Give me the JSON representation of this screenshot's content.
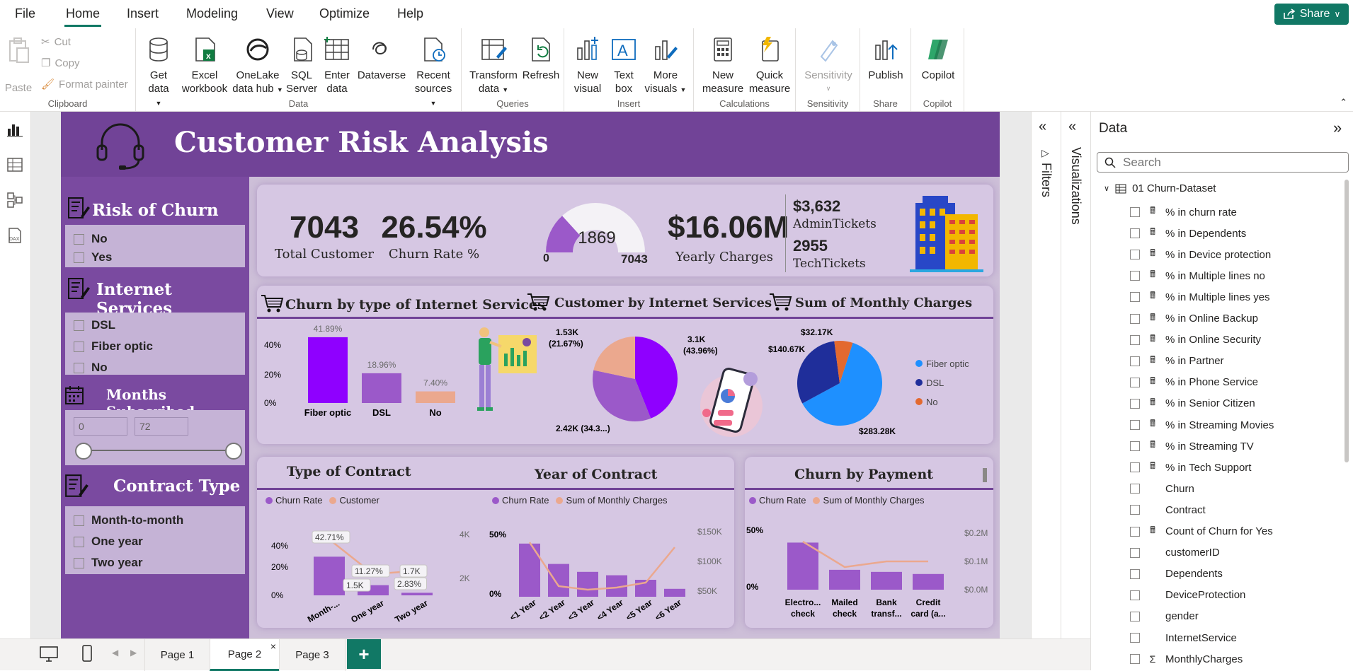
{
  "menu": {
    "items": [
      "File",
      "Home",
      "Insert",
      "Modeling",
      "View",
      "Optimize",
      "Help"
    ],
    "active": "Home",
    "share_label": "Share"
  },
  "ribbon": {
    "clipboard": {
      "paste": "Paste",
      "cut": "Cut",
      "copy": "Copy",
      "format_painter": "Format painter",
      "label": "Clipboard"
    },
    "data": {
      "get_data_1": "Get",
      "get_data_2": "data",
      "excel_1": "Excel",
      "excel_2": "workbook",
      "onelake_1": "OneLake",
      "onelake_2": "data hub",
      "sql_1": "SQL",
      "sql_2": "Server",
      "enter_1": "Enter",
      "enter_2": "data",
      "dataverse": "Dataverse",
      "recent_1": "Recent",
      "recent_2": "sources",
      "label": "Data"
    },
    "queries": {
      "transform_1": "Transform",
      "transform_2": "data",
      "refresh": "Refresh",
      "label": "Queries"
    },
    "insert": {
      "new_visual_1": "New",
      "new_visual_2": "visual",
      "text_box_1": "Text",
      "text_box_2": "box",
      "more_visuals_1": "More",
      "more_visuals_2": "visuals",
      "label": "Insert"
    },
    "calculations": {
      "new_measure_1": "New",
      "new_measure_2": "measure",
      "quick_measure_1": "Quick",
      "quick_measure_2": "measure",
      "label": "Calculations"
    },
    "sensitivity": {
      "btn": "Sensitivity",
      "label": "Sensitivity"
    },
    "share": {
      "publish": "Publish",
      "label": "Share"
    },
    "copilot": {
      "btn": "Copilot",
      "label": "Copilot"
    }
  },
  "report": {
    "title": "Customer Risk  Analysis",
    "slicers": {
      "risk": {
        "title": "Risk of Churn",
        "options": [
          "No",
          "Yes"
        ]
      },
      "internet": {
        "title": "Internet Services",
        "options": [
          "DSL",
          "Fiber optic",
          "No"
        ]
      },
      "months": {
        "title": "Months Subscribed",
        "min": "0",
        "max": "72"
      },
      "contract": {
        "title": "Contract Type",
        "options": [
          "Month-to-month",
          "One year",
          "Two year"
        ]
      }
    },
    "kpis": {
      "total_customer": {
        "value": "7043",
        "label": "Total Customer"
      },
      "churn_rate": {
        "value": "26.54%",
        "label": "Churn Rate %"
      },
      "gauge": {
        "value": "1869",
        "min": "0",
        "max": "7043",
        "fraction": 0.2654
      },
      "yearly_charges": {
        "value": "$16.06M",
        "label": "Yearly Charges"
      },
      "admin_tickets": {
        "value": "$3,632",
        "label": "AdminTickets"
      },
      "tech_tickets": {
        "value": "2955",
        "label": "TechTickets"
      }
    },
    "section_titles": {
      "churn_internet": "Churn by type of Internet Services",
      "customer_internet": "Customer by Internet Services",
      "monthly_charges": "Sum of Monthly Charges",
      "type_contract": "Type of Contract",
      "year_contract": "Year of Contract",
      "payment": "Churn by Payment Method"
    },
    "legends": {
      "churn_rate": "Churn Rate",
      "customer": "Customer",
      "sum_monthly": "Sum of Monthly Charges"
    },
    "colors": {
      "purple": "#9b59c9",
      "bright_purple": "#8f00ff",
      "salmon": "#eba88e",
      "blue": "#1e90ff",
      "navy": "#1f2e9a",
      "orange": "#e3692f"
    }
  },
  "chart_data": [
    {
      "type": "bar",
      "title": "Churn by type of Internet Services",
      "categories": [
        "Fiber optic",
        "DSL",
        "No"
      ],
      "values": [
        41.89,
        18.96,
        7.4
      ],
      "data_labels": [
        "41.89%",
        "18.96%",
        "7.40%"
      ],
      "yticks": [
        "40%",
        "20%",
        "0%"
      ],
      "ylim": [
        0,
        45
      ]
    },
    {
      "type": "pie",
      "title": "Customer by Internet Services",
      "labels": [
        "Fiber optic",
        "DSL",
        "No"
      ],
      "values": [
        3096,
        2421,
        1526
      ],
      "data_labels": [
        "3.1K\n(43.96%)",
        "2.42K (34.3...)",
        "1.53K\n(21.67%)"
      ]
    },
    {
      "type": "pie",
      "title": "Sum of Monthly Charges",
      "labels": [
        "Fiber optic",
        "DSL",
        "No"
      ],
      "values": [
        283.28,
        140.67,
        32.17
      ],
      "data_labels": [
        "$283.28K",
        "$140.67K",
        "$32.17K"
      ],
      "legend": [
        "Fiber optic",
        "DSL",
        "No"
      ]
    },
    {
      "type": "bar",
      "title": "Type of Contract",
      "categories": [
        "Month-...",
        "One year",
        "Two year"
      ],
      "series": [
        {
          "name": "Churn Rate",
          "values": [
            42.71,
            11.27,
            2.83
          ],
          "labels": [
            "42.71%",
            "11.27%",
            "2.83%"
          ]
        },
        {
          "name": "Customer",
          "values": [
            3875,
            1473,
            1695
          ],
          "labels": [
            "",
            "1.5K",
            "1.7K"
          ]
        }
      ],
      "yticks_left": [
        "40%",
        "20%",
        "0%"
      ],
      "yticks_right": [
        "4K",
        "2K"
      ]
    },
    {
      "type": "bar",
      "title": "Year of Contract",
      "categories": [
        "<1 Year",
        "<2 Year",
        "<3 Year",
        "<4 Year",
        "<5 Year",
        "<6 Year"
      ],
      "series": [
        {
          "name": "Churn Rate",
          "values": [
            47,
            29,
            22,
            19,
            15,
            7
          ]
        },
        {
          "name": "Sum of Monthly Charges",
          "values": [
            122000,
            60000,
            55000,
            58000,
            65000,
            115000
          ]
        }
      ],
      "yticks_left": [
        "50%",
        "0%"
      ],
      "yticks_right": [
        "$150K",
        "$100K",
        "$50K"
      ]
    },
    {
      "type": "bar",
      "title": "Churn by Payment Method",
      "categories": [
        "Electro... check",
        "Mailed check",
        "Bank transf...",
        "Credit card (a..."
      ],
      "series": [
        {
          "name": "Churn Rate",
          "values": [
            45,
            19,
            17,
            15
          ]
        },
        {
          "name": "Sum of Monthly Charges",
          "values": [
            0.17,
            0.08,
            0.1,
            0.1
          ]
        }
      ],
      "yticks_left": [
        "50%",
        "0%"
      ],
      "yticks_right": [
        "$0.2M",
        "$0.1M",
        "$0.0M"
      ]
    }
  ],
  "panes": {
    "filters": "Filters",
    "visualizations": "Visualizations",
    "data": {
      "title": "Data",
      "search_placeholder": "Search",
      "table": "01 Churn-Dataset",
      "fields": [
        {
          "name": "% in churn rate",
          "icon": "calc"
        },
        {
          "name": "% in Dependents",
          "icon": "calc"
        },
        {
          "name": "% in Device protection",
          "icon": "calc"
        },
        {
          "name": "% in Multiple lines no",
          "icon": "calc"
        },
        {
          "name": "% in Multiple lines yes",
          "icon": "calc"
        },
        {
          "name": "% in Online Backup",
          "icon": "calc"
        },
        {
          "name": "% in Online Security",
          "icon": "calc"
        },
        {
          "name": "% in Partner",
          "icon": "calc"
        },
        {
          "name": "% in Phone Service",
          "icon": "calc"
        },
        {
          "name": "% in Senior Citizen",
          "icon": "calc"
        },
        {
          "name": "% in Streaming Movies",
          "icon": "calc"
        },
        {
          "name": "% in Streaming TV",
          "icon": "calc"
        },
        {
          "name": "% in Tech Support",
          "icon": "calc"
        },
        {
          "name": "Churn",
          "icon": ""
        },
        {
          "name": "Contract",
          "icon": ""
        },
        {
          "name": "Count of Churn for Yes",
          "icon": "calc"
        },
        {
          "name": "customerID",
          "icon": ""
        },
        {
          "name": "Dependents",
          "icon": ""
        },
        {
          "name": "DeviceProtection",
          "icon": ""
        },
        {
          "name": "gender",
          "icon": ""
        },
        {
          "name": "InternetService",
          "icon": ""
        },
        {
          "name": "MonthlyCharges",
          "icon": "sigma"
        }
      ]
    }
  },
  "pages": {
    "tabs": [
      "Page 1",
      "Page 2",
      "Page 3"
    ],
    "active": "Page 2",
    "add": "+"
  }
}
